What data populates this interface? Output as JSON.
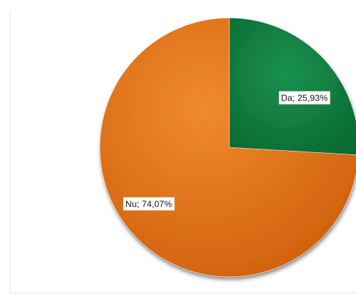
{
  "chart_data": {
    "type": "pie",
    "categories": [
      "Da",
      "Nu"
    ],
    "values": [
      25.93,
      74.07
    ],
    "labels": [
      "Da; 25,93%",
      "Nu; 74,07%"
    ],
    "colors": [
      "#0f7a3c",
      "#e06d17"
    ],
    "start": "12 o'clock",
    "direction": "clockwise",
    "legend": "none"
  }
}
